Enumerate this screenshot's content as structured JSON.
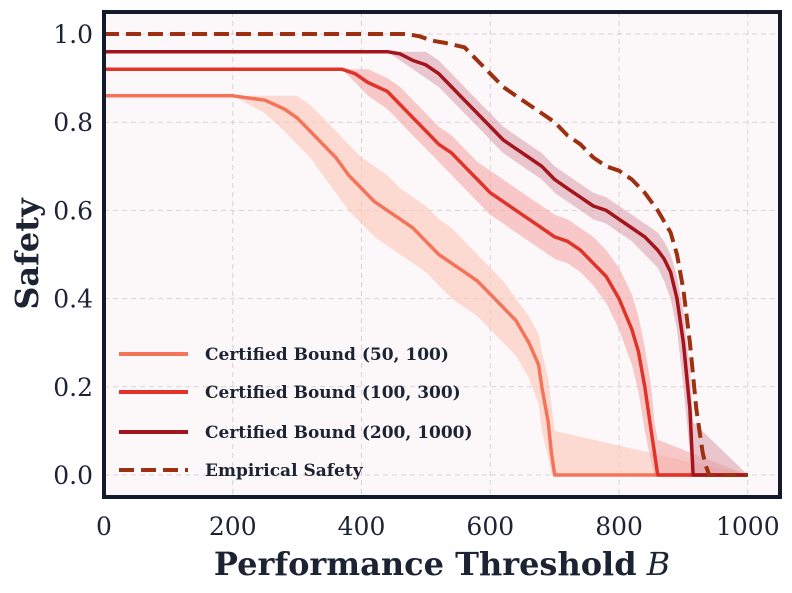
{
  "chart_data": {
    "type": "line",
    "title": "",
    "xlabel": "Performance Threshold",
    "xlabel_symbol": "B",
    "ylabel": "Safety",
    "xlim": [
      0,
      1050
    ],
    "ylim": [
      -0.05,
      1.05
    ],
    "xticks": [
      0,
      200,
      400,
      600,
      800,
      1000
    ],
    "xtick_labels": [
      "0",
      "200",
      "400",
      "600",
      "800",
      "1000"
    ],
    "yticks": [
      0.0,
      0.2,
      0.4,
      0.6,
      0.8,
      1.0
    ],
    "ytick_labels": [
      "0.0",
      "0.2",
      "0.4",
      "0.6",
      "0.8",
      "1.0"
    ],
    "grid": true,
    "legend_position": "bottom-left",
    "series": [
      {
        "name": "Certified Bound (50, 100)",
        "color": "#f47459",
        "dash": false,
        "x": [
          0,
          200,
          250,
          280,
          300,
          320,
          340,
          360,
          380,
          400,
          420,
          440,
          460,
          480,
          500,
          520,
          540,
          560,
          580,
          600,
          620,
          640,
          660,
          675,
          680,
          690,
          695,
          700,
          1000
        ],
        "y": [
          0.86,
          0.86,
          0.85,
          0.83,
          0.81,
          0.78,
          0.75,
          0.72,
          0.68,
          0.65,
          0.62,
          0.6,
          0.58,
          0.56,
          0.53,
          0.5,
          0.48,
          0.46,
          0.44,
          0.41,
          0.38,
          0.35,
          0.3,
          0.25,
          0.2,
          0.12,
          0.05,
          0.0,
          0.0
        ],
        "band_upper": [
          0.86,
          0.86,
          0.86,
          0.86,
          0.86,
          0.84,
          0.81,
          0.78,
          0.75,
          0.72,
          0.7,
          0.68,
          0.65,
          0.63,
          0.61,
          0.58,
          0.56,
          0.53,
          0.5,
          0.47,
          0.44,
          0.4,
          0.36,
          0.32,
          0.28,
          0.22,
          0.16,
          0.1,
          0.0
        ],
        "band_lower": [
          0.86,
          0.86,
          0.82,
          0.78,
          0.75,
          0.72,
          0.68,
          0.64,
          0.6,
          0.57,
          0.54,
          0.52,
          0.5,
          0.48,
          0.46,
          0.43,
          0.4,
          0.38,
          0.36,
          0.33,
          0.3,
          0.27,
          0.22,
          0.16,
          0.1,
          0.04,
          0.0,
          0.0,
          0.0
        ]
      },
      {
        "name": "Certified Bound (100, 300)",
        "color": "#e0342b",
        "dash": false,
        "x": [
          0,
          370,
          390,
          410,
          440,
          460,
          480,
          500,
          520,
          540,
          560,
          580,
          600,
          620,
          640,
          660,
          680,
          700,
          720,
          740,
          760,
          780,
          800,
          820,
          830,
          840,
          850,
          855,
          860,
          1000
        ],
        "y": [
          0.92,
          0.92,
          0.91,
          0.89,
          0.87,
          0.84,
          0.81,
          0.78,
          0.75,
          0.73,
          0.7,
          0.67,
          0.64,
          0.62,
          0.6,
          0.58,
          0.56,
          0.54,
          0.53,
          0.51,
          0.48,
          0.45,
          0.4,
          0.33,
          0.28,
          0.2,
          0.1,
          0.05,
          0.0,
          0.0
        ],
        "band_upper": [
          0.92,
          0.92,
          0.92,
          0.92,
          0.9,
          0.88,
          0.85,
          0.82,
          0.79,
          0.77,
          0.74,
          0.71,
          0.69,
          0.67,
          0.65,
          0.63,
          0.61,
          0.59,
          0.58,
          0.56,
          0.54,
          0.51,
          0.47,
          0.41,
          0.36,
          0.29,
          0.2,
          0.12,
          0.08,
          0.0
        ],
        "band_lower": [
          0.92,
          0.92,
          0.89,
          0.86,
          0.83,
          0.8,
          0.77,
          0.74,
          0.71,
          0.68,
          0.65,
          0.62,
          0.59,
          0.57,
          0.55,
          0.53,
          0.51,
          0.49,
          0.48,
          0.46,
          0.43,
          0.39,
          0.33,
          0.25,
          0.19,
          0.1,
          0.03,
          0.0,
          0.0,
          0.0
        ]
      },
      {
        "name": "Certified Bound (200, 1000)",
        "color": "#a3141c",
        "dash": false,
        "x": [
          0,
          440,
          460,
          480,
          500,
          520,
          540,
          560,
          580,
          600,
          620,
          640,
          660,
          680,
          700,
          720,
          740,
          760,
          780,
          800,
          820,
          840,
          860,
          870,
          880,
          890,
          900,
          910,
          915,
          1000
        ],
        "y": [
          0.96,
          0.96,
          0.955,
          0.94,
          0.93,
          0.91,
          0.88,
          0.85,
          0.82,
          0.79,
          0.76,
          0.74,
          0.72,
          0.7,
          0.67,
          0.65,
          0.63,
          0.61,
          0.6,
          0.58,
          0.56,
          0.54,
          0.51,
          0.49,
          0.46,
          0.4,
          0.3,
          0.15,
          0.0,
          0.0
        ],
        "band_upper": [
          0.96,
          0.96,
          0.96,
          0.96,
          0.96,
          0.94,
          0.91,
          0.88,
          0.85,
          0.82,
          0.79,
          0.77,
          0.75,
          0.73,
          0.7,
          0.68,
          0.66,
          0.64,
          0.63,
          0.61,
          0.59,
          0.57,
          0.55,
          0.53,
          0.5,
          0.45,
          0.37,
          0.24,
          0.12,
          0.0
        ],
        "band_lower": [
          0.96,
          0.96,
          0.94,
          0.92,
          0.9,
          0.88,
          0.85,
          0.82,
          0.79,
          0.76,
          0.73,
          0.71,
          0.69,
          0.67,
          0.64,
          0.62,
          0.6,
          0.58,
          0.57,
          0.55,
          0.53,
          0.5,
          0.47,
          0.44,
          0.4,
          0.33,
          0.2,
          0.05,
          0.0,
          0.0
        ]
      },
      {
        "name": "Empirical Safety",
        "color": "#9c3011",
        "dash": true,
        "x": [
          0,
          470,
          490,
          510,
          530,
          560,
          580,
          600,
          620,
          640,
          660,
          680,
          700,
          720,
          740,
          760,
          780,
          800,
          820,
          840,
          860,
          880,
          890,
          900,
          910,
          920,
          930,
          935,
          940,
          1000
        ],
        "y": [
          1.0,
          1.0,
          0.995,
          0.985,
          0.98,
          0.97,
          0.94,
          0.91,
          0.88,
          0.86,
          0.84,
          0.82,
          0.8,
          0.77,
          0.75,
          0.72,
          0.7,
          0.69,
          0.67,
          0.64,
          0.6,
          0.55,
          0.5,
          0.42,
          0.3,
          0.15,
          0.05,
          0.02,
          0.0,
          0.0
        ]
      }
    ]
  }
}
